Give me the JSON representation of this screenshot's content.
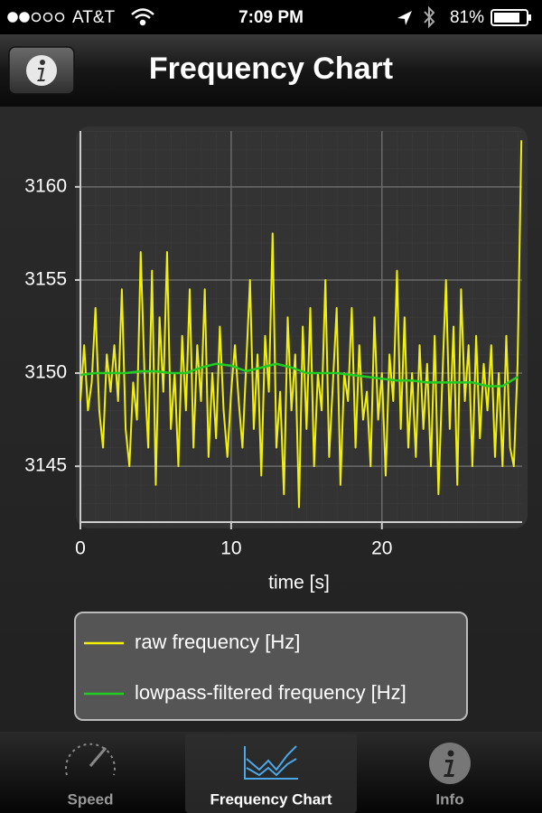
{
  "status_bar": {
    "carrier": "AT&T",
    "time": "7:09 PM",
    "battery": "81%"
  },
  "nav_bar": {
    "title": "Frequency Chart"
  },
  "chart_data": {
    "type": "line",
    "x_label": "time [s]",
    "xlim": [
      0,
      29.3
    ],
    "ylim": [
      3142,
      3163
    ],
    "xticks": [
      0,
      10,
      20
    ],
    "yticks": [
      3145,
      3150,
      3155,
      3160
    ],
    "grid": true,
    "series": [
      {
        "name": "raw frequency [Hz]",
        "color": "#f0f00c",
        "x": [
          0,
          0.25,
          0.5,
          0.75,
          1,
          1.25,
          1.5,
          1.75,
          2,
          2.25,
          2.5,
          2.75,
          3,
          3.25,
          3.5,
          3.75,
          4,
          4.25,
          4.5,
          4.75,
          5,
          5.25,
          5.5,
          5.75,
          6,
          6.25,
          6.5,
          6.75,
          7,
          7.25,
          7.5,
          7.75,
          8,
          8.25,
          8.5,
          8.75,
          9,
          9.25,
          9.5,
          9.75,
          10,
          10.25,
          10.5,
          10.75,
          11,
          11.25,
          11.5,
          11.75,
          12,
          12.25,
          12.5,
          12.75,
          13,
          13.25,
          13.5,
          13.75,
          14,
          14.25,
          14.5,
          14.75,
          15,
          15.25,
          15.5,
          15.75,
          16,
          16.25,
          16.5,
          16.75,
          17,
          17.25,
          17.5,
          17.75,
          18,
          18.25,
          18.5,
          18.75,
          19,
          19.25,
          19.5,
          19.75,
          20,
          20.25,
          20.5,
          20.75,
          21,
          21.25,
          21.5,
          21.75,
          22,
          22.25,
          22.5,
          22.75,
          23,
          23.25,
          23.5,
          23.75,
          24,
          24.25,
          24.5,
          24.75,
          25,
          25.25,
          25.5,
          25.75,
          26,
          26.25,
          26.5,
          26.75,
          27,
          27.25,
          27.5,
          27.75,
          28,
          28.25,
          28.5,
          28.75,
          29,
          29.25
        ],
        "values": [
          3148.5,
          3151.5,
          3148,
          3149.5,
          3153.5,
          3148,
          3146,
          3151,
          3149,
          3151.5,
          3148.5,
          3154.5,
          3147,
          3145,
          3149.5,
          3147.5,
          3156.5,
          3150,
          3146,
          3155.5,
          3144,
          3153,
          3149,
          3156.5,
          3147,
          3150,
          3145,
          3152,
          3148,
          3154.5,
          3146,
          3151.5,
          3148.5,
          3154.5,
          3145.5,
          3150,
          3146.5,
          3152.5,
          3148,
          3145.5,
          3149,
          3151.5,
          3148.5,
          3146,
          3150.5,
          3155,
          3147,
          3151,
          3144.5,
          3152,
          3149,
          3157.5,
          3146,
          3149,
          3143.5,
          3153,
          3148,
          3151,
          3142.8,
          3152.5,
          3147,
          3153.5,
          3145,
          3150,
          3148,
          3155,
          3145.5,
          3149.5,
          3153.5,
          3144,
          3150,
          3148.5,
          3153.5,
          3146,
          3151.5,
          3147.5,
          3149,
          3145,
          3153,
          3147.5,
          3150,
          3144.5,
          3151,
          3148.5,
          3155.5,
          3147,
          3153,
          3146,
          3150,
          3145.5,
          3151.5,
          3147,
          3150.5,
          3145,
          3152,
          3143.5,
          3149.5,
          3155,
          3147,
          3152.5,
          3144,
          3154.5,
          3148.5,
          3151.5,
          3145,
          3152,
          3146.5,
          3150.5,
          3148,
          3151.5,
          3145.5,
          3150,
          3145,
          3152,
          3146,
          3145,
          3150.5,
          3162.5
        ]
      },
      {
        "name": "lowpass-filtered frequency [Hz]",
        "color": "#22cc22",
        "x": [
          0,
          1,
          2,
          3,
          4,
          5,
          6,
          7,
          8,
          9,
          10,
          11,
          12,
          13,
          14,
          15,
          16,
          17,
          18,
          19,
          20,
          21,
          22,
          23,
          24,
          25,
          26,
          27,
          28,
          29
        ],
        "values": [
          3149.9,
          3150,
          3150,
          3150,
          3150.1,
          3150.1,
          3150,
          3150,
          3150.3,
          3150.5,
          3150.4,
          3150.1,
          3150.3,
          3150.5,
          3150.3,
          3150,
          3150,
          3150,
          3149.9,
          3149.8,
          3149.7,
          3149.6,
          3149.6,
          3149.5,
          3149.5,
          3149.5,
          3149.5,
          3149.3,
          3149.3,
          3149.8
        ]
      }
    ]
  },
  "tab_bar": {
    "tabs": [
      "Speed",
      "Frequency Chart",
      "Info"
    ]
  }
}
